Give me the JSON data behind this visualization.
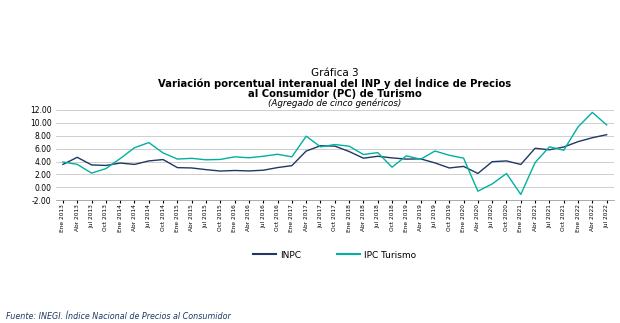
{
  "title_line1": "Gráfica 3",
  "title_line2": "Variación porcentual interanual del INP y del Índice de Precios",
  "title_line3": "al Consumidor (PC) de Turismo",
  "title_line4": "(Agregado de cinco genéricos)",
  "ylim": [
    -2.0,
    12.5
  ],
  "yticks": [
    -2.0,
    0.0,
    2.0,
    4.0,
    6.0,
    8.0,
    10.0,
    12.0
  ],
  "source": "Fuente: INEGI. Índice Nacional de Precios al Consumidor",
  "inpc_color": "#1F3864",
  "ipc_turismo_color": "#00B0A0",
  "background_color": "#FFFFFF",
  "inpc_label": "INPC",
  "ipc_label": "IPC Turismo",
  "x_labels": [
    "Ene 2013",
    "Abr 2013",
    "Jul 2013",
    "Oct 2013",
    "Ene 2014",
    "Abr 2014",
    "Jul 2014",
    "Oct 2014",
    "Ene 2015",
    "Abr 2015",
    "Jul 2015",
    "Oct 2015",
    "Ene 2016",
    "Abr 2016",
    "Jul 2016",
    "Oct 2016",
    "Ene 2017",
    "Abr 2017",
    "Jul 2017",
    "Oct 2017",
    "Ene 2018",
    "Abr 2018",
    "Jul 2018",
    "Oct 2018",
    "Ene 2019",
    "Abr 2019",
    "Jul 2019",
    "Oct 2019",
    "Ene 2020",
    "Abr 2020",
    "Jul 2020",
    "Oct 2020",
    "Ene 2021",
    "Abr 2021",
    "Jul 2021",
    "Oct 2021",
    "Ene 2022",
    "Abr 2022",
    "Jul 2022"
  ],
  "inpc": [
    3.55,
    4.65,
    3.47,
    3.39,
    3.76,
    3.55,
    4.09,
    4.3,
    3.05,
    3.0,
    2.74,
    2.52,
    2.61,
    2.54,
    2.65,
    3.06,
    3.36,
    5.62,
    6.44,
    6.38,
    5.55,
    4.51,
    4.81,
    4.56,
    4.37,
    4.41,
    3.78,
    3.0,
    3.24,
    2.15,
    3.97,
    4.09,
    3.54,
    6.05,
    5.81,
    6.24,
    7.07,
    7.68,
    8.15
  ],
  "ipc_turismo": [
    3.92,
    3.56,
    2.2,
    2.9,
    4.45,
    6.13,
    6.93,
    5.32,
    4.38,
    4.49,
    4.26,
    4.32,
    4.72,
    4.58,
    4.81,
    5.12,
    4.72,
    7.92,
    6.27,
    6.62,
    6.38,
    5.08,
    5.38,
    3.12,
    4.88,
    4.35,
    5.62,
    4.97,
    4.52,
    -0.6,
    0.53,
    2.14,
    -1.1,
    3.84,
    6.27,
    5.74,
    9.35,
    11.6,
    9.66
  ]
}
